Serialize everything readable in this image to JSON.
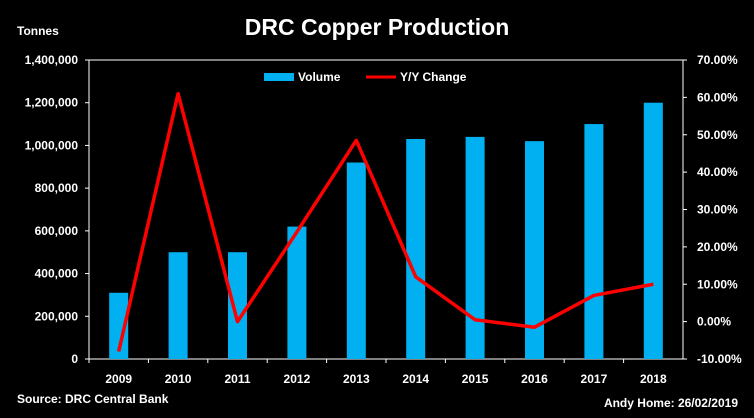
{
  "chart_data": {
    "type": "bar",
    "title": "DRC Copper Production",
    "y_left_label": "Tonnes",
    "categories": [
      "2009",
      "2010",
      "2011",
      "2012",
      "2013",
      "2014",
      "2015",
      "2016",
      "2017",
      "2018"
    ],
    "series": [
      {
        "name": "Volume",
        "type": "bar",
        "axis": "left",
        "color": "#00B0F0",
        "values": [
          310000,
          500000,
          500000,
          620000,
          920000,
          1030000,
          1040000,
          1020000,
          1100000,
          1200000
        ]
      },
      {
        "name": "Y/Y Change",
        "type": "line",
        "axis": "right",
        "color": "#FF0000",
        "values": [
          -8,
          61,
          0,
          24,
          48.5,
          12,
          0.5,
          -1.5,
          7,
          10
        ]
      }
    ],
    "y_left": {
      "min": 0,
      "max": 1400000,
      "step": 200000,
      "tick_labels": [
        "0",
        "200,000",
        "400,000",
        "600,000",
        "800,000",
        "1,000,000",
        "1,200,000",
        "1,400,000"
      ]
    },
    "y_right": {
      "min": -10,
      "max": 70,
      "step": 10,
      "tick_labels": [
        "-10.00%",
        "0.00%",
        "10.00%",
        "20.00%",
        "30.00%",
        "40.00%",
        "50.00%",
        "60.00%",
        "70.00%"
      ]
    },
    "grid": false,
    "legend_position": "top-center",
    "background": "#000000",
    "text_color": "#FFFFFF"
  },
  "footer": {
    "source": "Source: DRC Central Bank",
    "author": "Andy Home: 26/02/2019"
  }
}
